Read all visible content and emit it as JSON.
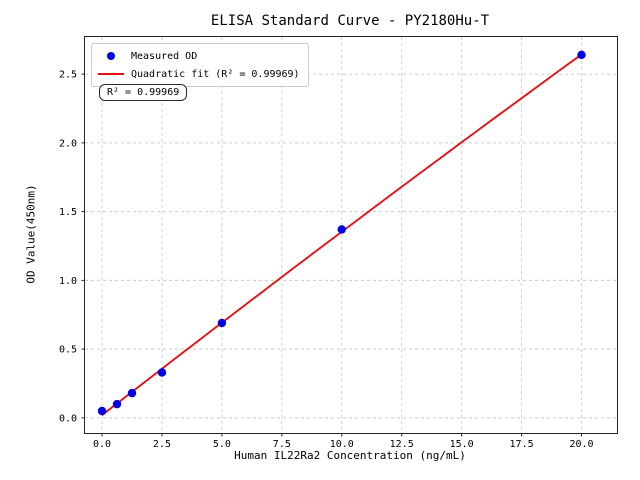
{
  "chart_data": {
    "type": "scatter",
    "title": "ELISA Standard Curve - PY2180Hu-T",
    "xlabel": "Human IL22Ra2 Concentration (ng/mL)",
    "ylabel": "OD Value(450nm)",
    "annotation": "R² = 0.99969",
    "r_squared": 0.99969,
    "fit_type": "quadratic",
    "x": [
      0,
      0.625,
      1.25,
      2.5,
      5,
      10,
      20
    ],
    "y": [
      0.05,
      0.1,
      0.18,
      0.33,
      0.69,
      1.37,
      2.64
    ],
    "series": [
      {
        "name": "Measured OD",
        "type": "scatter",
        "color": "#0202e0"
      },
      {
        "name": "Quadratic fit (R² = 0.99969)",
        "type": "line",
        "color": "#e31212"
      }
    ],
    "xlim": [
      -0.71,
      21.48
    ],
    "ylim": [
      -0.11,
      2.77
    ],
    "xticks": [
      0,
      2.5,
      5,
      7.5,
      10,
      12.5,
      15,
      17.5,
      20
    ],
    "xtick_labels": [
      "0.0",
      "2.5",
      "5.0",
      "7.5",
      "10.0",
      "12.5",
      "15.0",
      "17.5",
      "20.0"
    ],
    "yticks": [
      0,
      0.5,
      1,
      1.5,
      2,
      2.5
    ],
    "ytick_labels": [
      "0.0",
      "0.5",
      "1.0",
      "1.5",
      "2.0",
      "2.5"
    ],
    "grid": true,
    "legend_position": "upper left"
  }
}
